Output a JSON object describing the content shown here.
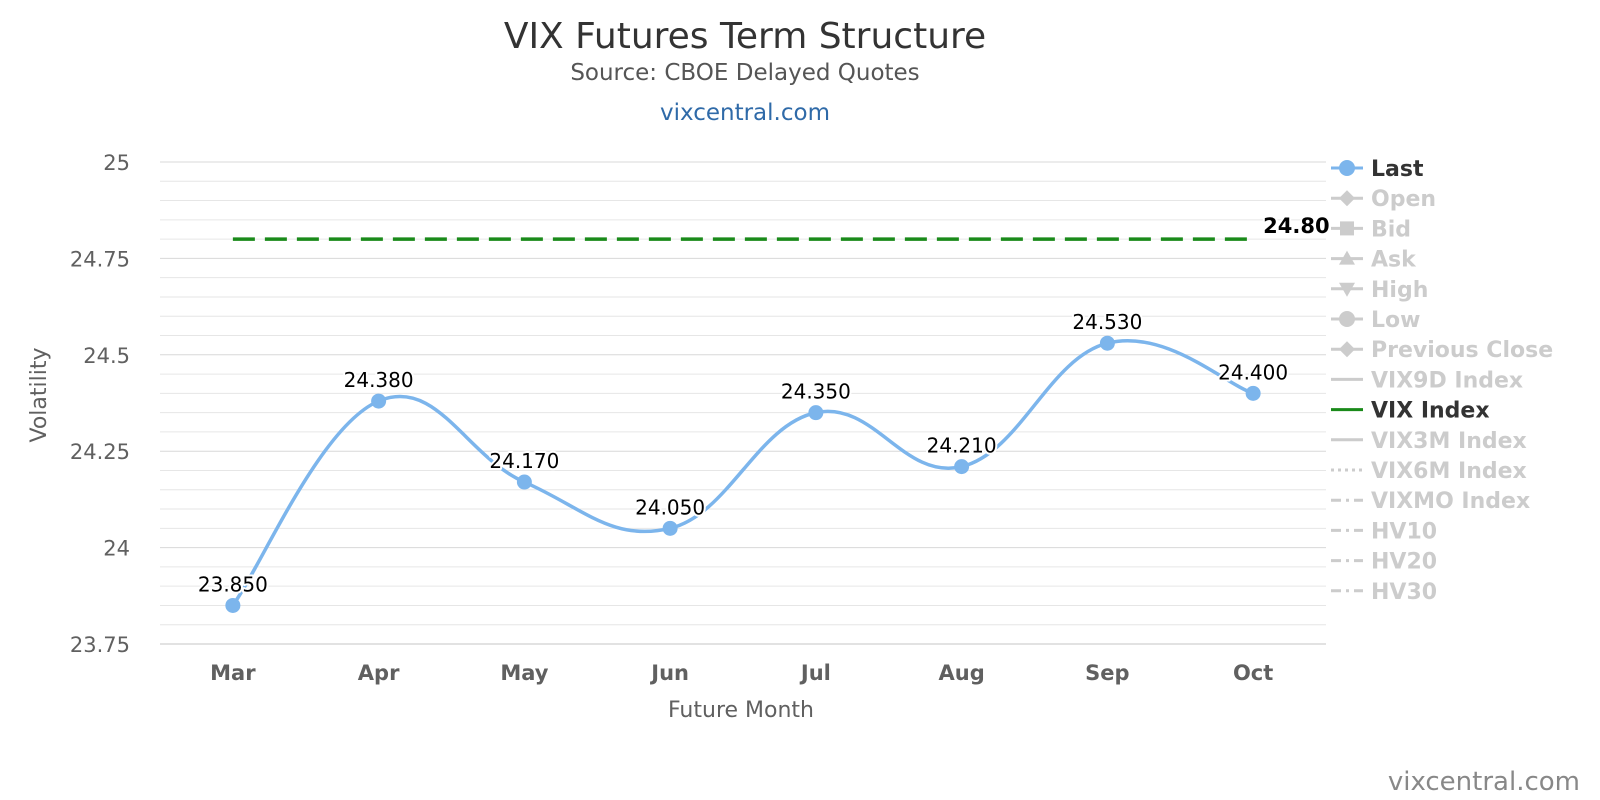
{
  "title": "VIX Futures Term Structure",
  "subtitle": "Source: CBOE Delayed Quotes",
  "link": "vixcentral.com",
  "credit": "vixcentral.com",
  "colors": {
    "last": "#7cb5ec",
    "vix": "#1a8a1a",
    "inactive": "#cccccc",
    "active_text": "#333333"
  },
  "chart_data": {
    "type": "line",
    "title": "VIX Futures Term Structure",
    "subtitle": "Source: CBOE Delayed Quotes",
    "xlabel": "Future Month",
    "ylabel": "Volatility",
    "categories": [
      "Mar",
      "Apr",
      "May",
      "Jun",
      "Jul",
      "Aug",
      "Sep",
      "Oct"
    ],
    "ylim": [
      23.75,
      25
    ],
    "yticks": [
      "25",
      "24.75",
      "24.5",
      "24.25",
      "24",
      "23.75"
    ],
    "ytick_values": [
      25,
      24.75,
      24.5,
      24.25,
      24,
      23.75
    ],
    "grid": true,
    "legend_position": "right",
    "series": [
      {
        "name": "Last",
        "values": [
          23.85,
          24.38,
          24.17,
          24.05,
          24.35,
          24.21,
          24.53,
          24.4
        ],
        "labels": [
          "23.850",
          "24.380",
          "24.170",
          "24.050",
          "24.350",
          "24.210",
          "24.530",
          "24.400"
        ],
        "style": "smooth-line-markers",
        "color": "#7cb5ec"
      },
      {
        "name": "VIX Index",
        "values": [
          24.8,
          24.8,
          24.8,
          24.8,
          24.8,
          24.8,
          24.8,
          24.8
        ],
        "end_label": "24.80",
        "style": "dashed",
        "color": "#1a8a1a"
      }
    ],
    "legend": [
      {
        "name": "Last",
        "active": true,
        "icon": "circle-line-icon"
      },
      {
        "name": "Open",
        "active": false,
        "icon": "diamond-line-icon"
      },
      {
        "name": "Bid",
        "active": false,
        "icon": "square-line-icon"
      },
      {
        "name": "Ask",
        "active": false,
        "icon": "triangle-line-icon"
      },
      {
        "name": "High",
        "active": false,
        "icon": "triangle-down-line-icon"
      },
      {
        "name": "Low",
        "active": false,
        "icon": "circle-line-icon"
      },
      {
        "name": "Previous Close",
        "active": false,
        "icon": "diamond-line-icon"
      },
      {
        "name": "VIX9D Index",
        "active": false,
        "icon": "solid-line-icon"
      },
      {
        "name": "VIX Index",
        "active": true,
        "icon": "solid-line-icon"
      },
      {
        "name": "VIX3M Index",
        "active": false,
        "icon": "solid-line-icon"
      },
      {
        "name": "VIX6M Index",
        "active": false,
        "icon": "dotted-line-icon"
      },
      {
        "name": "VIXMO Index",
        "active": false,
        "icon": "dash-dot-line-icon"
      },
      {
        "name": "HV10",
        "active": false,
        "icon": "dash-dot-line-icon"
      },
      {
        "name": "HV20",
        "active": false,
        "icon": "dash-dot-line-icon"
      },
      {
        "name": "HV30",
        "active": false,
        "icon": "dash-dot-line-icon"
      }
    ]
  }
}
